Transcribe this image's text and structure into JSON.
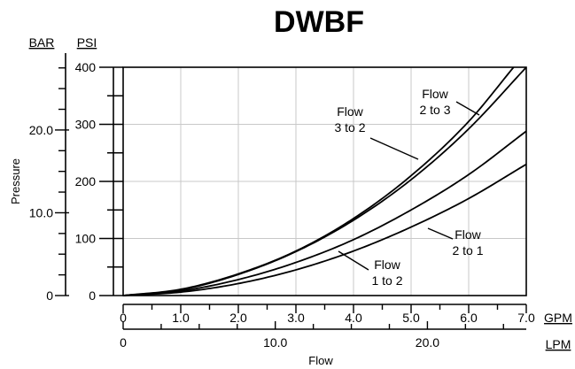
{
  "chart_data": {
    "type": "line",
    "title": "DWBF",
    "xlabel": "Flow",
    "ylabel": "Pressure",
    "x_unit": "GPM",
    "x2_unit": "LPM",
    "y_unit": "PSI",
    "y2_unit": "BAR",
    "xlim": [
      0,
      7
    ],
    "ylim": [
      0,
      400
    ],
    "x_ticks": [
      "0",
      "1.0",
      "2.0",
      "3.0",
      "4.0",
      "5.0",
      "6.0",
      "7.0"
    ],
    "x2_ticks": [
      "0",
      "10.0",
      "20.0"
    ],
    "x2_tick_values_lpm": [
      0,
      10,
      20
    ],
    "y_ticks": [
      "0",
      "100",
      "200",
      "300",
      "400"
    ],
    "y2_ticks": [
      "0",
      "10.0",
      "20.0"
    ],
    "y2_tick_values_bar": [
      0,
      10,
      20
    ],
    "grid": true,
    "series": [
      {
        "name": "Flow 3 to 2",
        "x": [
          0,
          1,
          2,
          3,
          4,
          5,
          6,
          6.78
        ],
        "y": [
          0,
          11,
          38,
          78,
          135,
          210,
          305,
          400
        ]
      },
      {
        "name": "Flow 2 to 3",
        "x": [
          0,
          1,
          2,
          3,
          4,
          5,
          6,
          7
        ],
        "y": [
          0,
          10,
          37,
          77,
          132,
          203,
          292,
          400
        ]
      },
      {
        "name": "Flow 2 to 1",
        "x": [
          0,
          1,
          2,
          3,
          4,
          5,
          6,
          7
        ],
        "y": [
          0,
          8,
          28,
          58,
          98,
          150,
          212,
          288
        ]
      },
      {
        "name": "Flow 1 to 2",
        "x": [
          0,
          1,
          2,
          3,
          4,
          5,
          6,
          7
        ],
        "y": [
          0,
          6,
          21,
          45,
          78,
          120,
          170,
          230
        ]
      }
    ],
    "annotations": [
      {
        "lines": [
          "Flow",
          "3 to 2"
        ],
        "series": "Flow 3 to 2"
      },
      {
        "lines": [
          "Flow",
          "2 to 3"
        ],
        "series": "Flow 2 to 3"
      },
      {
        "lines": [
          "Flow",
          "2 to 1"
        ],
        "series": "Flow 2 to 1"
      },
      {
        "lines": [
          "Flow",
          "1 to 2"
        ],
        "series": "Flow 1 to 2"
      }
    ]
  }
}
